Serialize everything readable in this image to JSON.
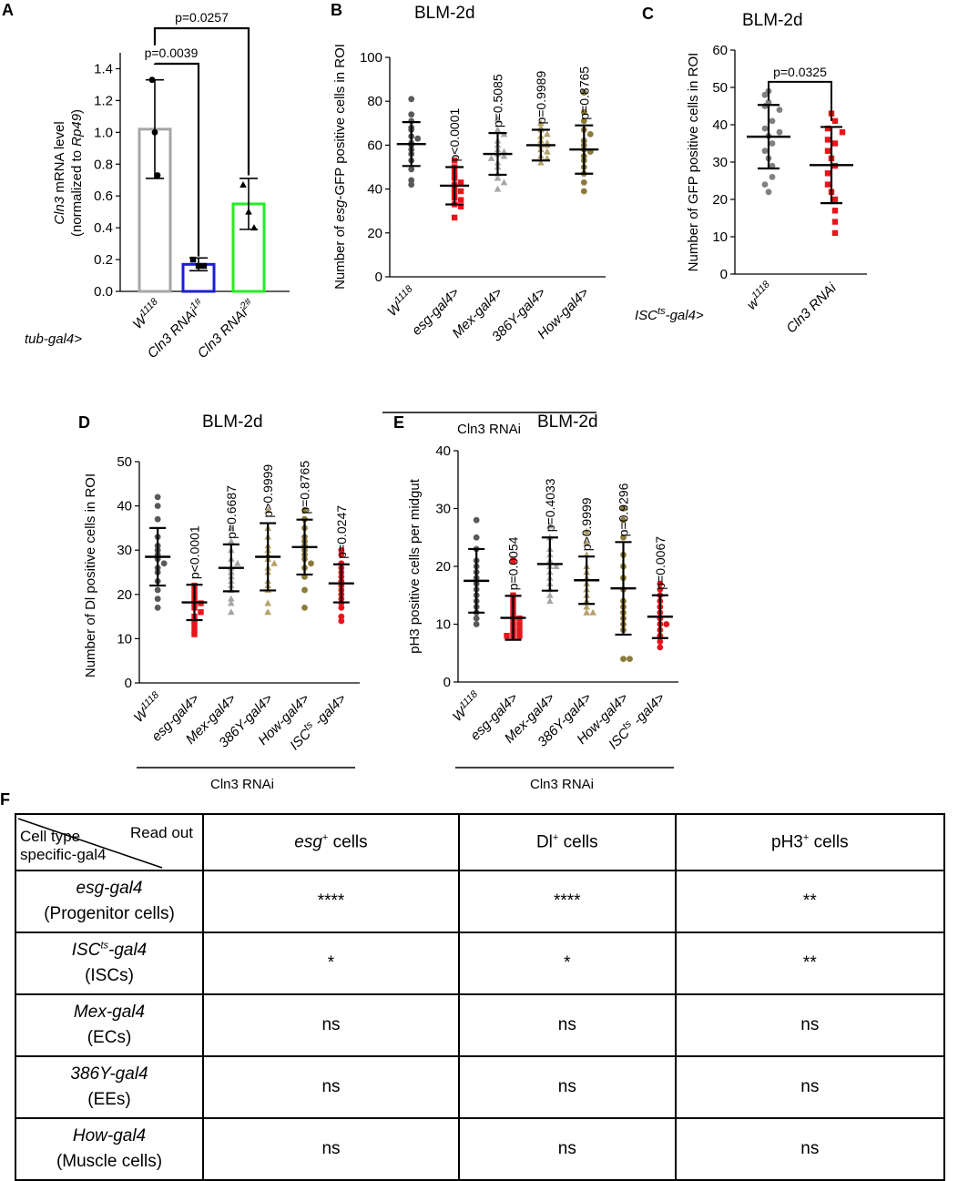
{
  "panel_labels": {
    "a": "A",
    "b": "B",
    "c": "C",
    "d": "D",
    "e": "E",
    "f": "F"
  },
  "chart_data": [
    {
      "id": "A",
      "type": "bar",
      "title": "",
      "ylabel": "Cln3 mRNA level (normalized to Rp49)",
      "ylabel_line1_italic": "Cln3",
      "ylabel_line1_rest": " mRNA level",
      "ylabel_line2_pre": "(normalized to ",
      "ylabel_line2_italic": "Rp49",
      "ylabel_line2_post": ")",
      "ylim": [
        0,
        1.5
      ],
      "yticks": [
        0.0,
        0.2,
        0.4,
        0.6,
        0.8,
        1.0,
        1.2,
        1.4
      ],
      "driver_label": "tub-gal4>",
      "categories": [
        "W1118",
        "Cln3 RNAi1#",
        "Cln3 RNAi2#"
      ],
      "category_parts": [
        {
          "base": "W",
          "sup": "1118"
        },
        {
          "base": "Cln3 RNAi",
          "sup": "1#"
        },
        {
          "base": "Cln3 RNAi",
          "sup": "2#"
        }
      ],
      "values": [
        1.02,
        0.17,
        0.55
      ],
      "sd": [
        0.31,
        0.04,
        0.16
      ],
      "points": [
        [
          1.33,
          1.0,
          0.73
        ],
        [
          0.2,
          0.16,
          0.16
        ],
        [
          0.67,
          0.5,
          0.4
        ]
      ],
      "bar_colors": [
        "#a6a6a6",
        "#1c1cd6",
        "#22ee22"
      ],
      "comparisons": [
        {
          "from": 0,
          "to": 1,
          "label": "p=0.0039"
        },
        {
          "from": 0,
          "to": 2,
          "label": "p=0.0257"
        }
      ]
    },
    {
      "id": "B",
      "type": "scatter",
      "title": "BLM-2d",
      "ylabel": "Number of esg-GFP positive cells in ROI",
      "ylabel_pre": "Number of ",
      "ylabel_italic": "esg",
      "ylabel_post": "-GFP positive cells in ROI",
      "ylim": [
        0,
        100
      ],
      "yticks": [
        0,
        20,
        40,
        60,
        80,
        100
      ],
      "categories": [
        "W1118",
        "esg-gal4>",
        "Mex-gal4>",
        "386Y-gal4>",
        "How-gal4>"
      ],
      "category_parts": [
        {
          "base": "W",
          "sup": "1118"
        },
        {
          "base": "esg-gal4>"
        },
        {
          "base": "Mex-gal4>"
        },
        {
          "base": "386Y-gal4>"
        },
        {
          "base": "How-gal4>"
        }
      ],
      "group_label": "Cln3 RNAi",
      "means": [
        60.5,
        41.5,
        56,
        60,
        58
      ],
      "sd": [
        10,
        8.5,
        9.5,
        7,
        11
      ],
      "pvalues": [
        "",
        "p<0.0001",
        "p=0.5085",
        "p=0.9989",
        "p=0.8765"
      ],
      "markers": [
        "circle",
        "square",
        "triangle",
        "triangle",
        "circle"
      ],
      "colors": [
        "#595959",
        "#e8141c",
        "#a6a6a6",
        "#b3a06a",
        "#8c7a3a"
      ],
      "points": [
        [
          81,
          74,
          71,
          68,
          67,
          64,
          63,
          61,
          60,
          58,
          56,
          53,
          49,
          44,
          42
        ],
        [
          53,
          50,
          48,
          46,
          45,
          43,
          42,
          40,
          39,
          38,
          36,
          35,
          33,
          32,
          27
        ],
        [
          72,
          67,
          65,
          62,
          60,
          58,
          57,
          56,
          55,
          54,
          52,
          50,
          47,
          45,
          43,
          40
        ],
        [
          70,
          68,
          67,
          65,
          64,
          62,
          61,
          60,
          60,
          58,
          57,
          55,
          54,
          52
        ],
        [
          84,
          75,
          71,
          67,
          65,
          62,
          60,
          58,
          57,
          55,
          53,
          50,
          47,
          43,
          39
        ]
      ]
    },
    {
      "id": "C",
      "type": "scatter",
      "title": "BLM-2d",
      "ylabel": "Number of GFP positive cells in ROI",
      "ylim": [
        0,
        60
      ],
      "yticks": [
        0,
        10,
        20,
        30,
        40,
        50,
        60
      ],
      "driver_label": "ISCts-gal4>",
      "driver_parts": {
        "base": "ISC",
        "sup": "ts",
        "post": "-gal4>"
      },
      "categories": [
        "w1118",
        "Cln3 RNAi"
      ],
      "category_parts": [
        {
          "base": "w",
          "sup": "1118"
        },
        {
          "base": "Cln3 RNAi"
        }
      ],
      "means": [
        36.8,
        29.2
      ],
      "sd": [
        8.5,
        10.2
      ],
      "markers": [
        "circle",
        "square"
      ],
      "colors": [
        "#808080",
        "#e8141c"
      ],
      "points": [
        [
          49,
          48,
          46,
          45,
          44,
          41,
          39,
          38,
          37,
          35,
          33,
          31,
          29,
          26,
          24,
          22
        ],
        [
          43,
          41,
          39,
          38,
          36,
          35,
          33,
          31,
          29,
          27,
          24,
          22,
          20,
          17,
          14,
          11
        ]
      ],
      "comparison": {
        "from": 0,
        "to": 1,
        "label": "p=0.0325"
      }
    },
    {
      "id": "D",
      "type": "scatter",
      "title": "BLM-2d",
      "ylabel": "Number of Dl positive cells in ROI",
      "ylim": [
        0,
        50
      ],
      "yticks": [
        0,
        10,
        20,
        30,
        40,
        50
      ],
      "categories": [
        "W1118",
        "esg-gal4>",
        "Mex-gal4>",
        "386Y-gal4>",
        "How-gal4>",
        "ISCts-gal4>"
      ],
      "category_parts": [
        {
          "base": "W",
          "sup": "1118"
        },
        {
          "base": "esg-gal4>"
        },
        {
          "base": "Mex-gal4>"
        },
        {
          "base": "386Y-gal4>"
        },
        {
          "base": "How-gal4>"
        },
        {
          "base": "ISC",
          "sup": "ts",
          "post": " -gal4>"
        }
      ],
      "group_label": "Cln3 RNAi",
      "means": [
        28.5,
        18.2,
        26,
        28.5,
        30.7,
        22.5
      ],
      "sd": [
        6.5,
        4,
        5.3,
        7.6,
        6.2,
        4.3
      ],
      "pvalues": [
        "",
        "p<0.0001",
        "p=0.6687",
        "p>0.9999",
        "p=0.8765",
        "p=0.0247"
      ],
      "markers": [
        "circle",
        "square",
        "triangle",
        "triangle",
        "circle",
        "circle"
      ],
      "colors": [
        "#595959",
        "#e8141c",
        "#a6a6a6",
        "#b3a06a",
        "#8c7a3a",
        "#e8141c"
      ],
      "points": [
        [
          42,
          40,
          37,
          33,
          31,
          30,
          29,
          28,
          27,
          26,
          25,
          23,
          21,
          19,
          17
        ],
        [
          22,
          21,
          20,
          19,
          18,
          18,
          17,
          16,
          15,
          14,
          13,
          12,
          11
        ],
        [
          35,
          32,
          30,
          28,
          27,
          26,
          25,
          24,
          23,
          22,
          21,
          19,
          18,
          16
        ],
        [
          39,
          35,
          33,
          31,
          30,
          29,
          28,
          27,
          26,
          25,
          23,
          22,
          21,
          18,
          16
        ],
        [
          39,
          37,
          35,
          33,
          32,
          31,
          30,
          29,
          28,
          27,
          26,
          24,
          21,
          17
        ],
        [
          30,
          29,
          27,
          26,
          25,
          24,
          23,
          22,
          21,
          20,
          19,
          18,
          17,
          15,
          14
        ]
      ]
    },
    {
      "id": "E",
      "type": "scatter",
      "title": "BLM-2d",
      "ylabel": "pH3 positive cells per midgut",
      "ylim": [
        0,
        40
      ],
      "yticks": [
        0,
        10,
        20,
        30,
        40
      ],
      "categories": [
        "W1118",
        "esg-gal4>",
        "Mex-gal4>",
        "386Y-gal4>",
        "How-gal4>",
        "ISCts-gal4>"
      ],
      "category_parts": [
        {
          "base": "W",
          "sup": "1118"
        },
        {
          "base": "esg-gal4>"
        },
        {
          "base": "Mex-gal4>"
        },
        {
          "base": "386Y-gal4>"
        },
        {
          "base": "How-gal4>"
        },
        {
          "base": "ISC",
          "sup": "ts",
          "post": " -gal4>"
        }
      ],
      "group_label": "Cln3 RNAi",
      "means": [
        17.5,
        11.1,
        20.4,
        17.6,
        16.2,
        11.3
      ],
      "sd": [
        5.5,
        3.8,
        4.6,
        4.1,
        8,
        3.7
      ],
      "pvalues": [
        "",
        "p=0.0054",
        "p=0.4033",
        "p>0.9999",
        "p=0.9296",
        "p=0.0067"
      ],
      "markers": [
        "circle",
        "square",
        "triangle",
        "triangle",
        "circle",
        "circle"
      ],
      "colors": [
        "#595959",
        "#e8141c",
        "#a6a6a6",
        "#b3a06a",
        "#8c7a3a",
        "#e8141c"
      ],
      "points": [
        [
          28,
          25,
          23,
          21,
          20,
          19,
          18,
          17,
          16,
          15,
          14,
          13,
          12,
          11,
          10
        ],
        [
          21,
          15,
          14,
          13,
          12,
          11,
          11,
          10,
          10,
          9,
          9,
          8,
          8,
          8
        ],
        [
          27,
          25,
          23,
          22,
          21,
          20,
          20,
          19,
          18,
          17,
          16,
          15,
          14
        ],
        [
          26,
          24,
          22,
          20,
          19,
          18,
          17,
          16,
          15,
          14,
          13,
          12,
          12
        ],
        [
          30,
          28,
          25,
          22,
          20,
          18,
          16,
          14,
          13,
          12,
          11,
          10,
          9,
          4,
          4
        ],
        [
          17,
          16,
          15,
          14,
          13,
          12,
          11,
          10,
          10,
          9,
          8,
          7,
          6
        ]
      ]
    },
    {
      "id": "F",
      "type": "table",
      "header": {
        "corner_readout": "Read out",
        "corner_celltype_1": "Cell type",
        "corner_celltype_2": "specific-gal4",
        "columns": [
          {
            "italic": "esg",
            "sup": "+",
            "rest": " cells"
          },
          {
            "italic": "",
            "base": "Dl",
            "sup": "+",
            "rest": " cells"
          },
          {
            "italic": "",
            "base": "pH3",
            "sup": "+",
            "rest": " cells"
          }
        ]
      },
      "rows": [
        {
          "driver": "esg-gal4",
          "driver_sup": "",
          "driver_post": "",
          "cell": "(Progenitor cells)",
          "values": [
            "****",
            "****",
            "**"
          ]
        },
        {
          "driver": "ISC",
          "driver_sup": "ts",
          "driver_post": "-gal4",
          "cell": "(ISCs)",
          "values": [
            "*",
            "*",
            "**"
          ]
        },
        {
          "driver": "Mex-gal4",
          "driver_sup": "",
          "driver_post": "",
          "cell": "(ECs)",
          "values": [
            "ns",
            "ns",
            "ns"
          ]
        },
        {
          "driver": "386Y-gal4",
          "driver_sup": "",
          "driver_post": "",
          "cell": "(EEs)",
          "values": [
            "ns",
            "ns",
            "ns"
          ]
        },
        {
          "driver": "How-gal4",
          "driver_sup": "",
          "driver_post": "",
          "cell": "(Muscle  cells)",
          "values": [
            "ns",
            "ns",
            "ns"
          ]
        }
      ]
    }
  ]
}
